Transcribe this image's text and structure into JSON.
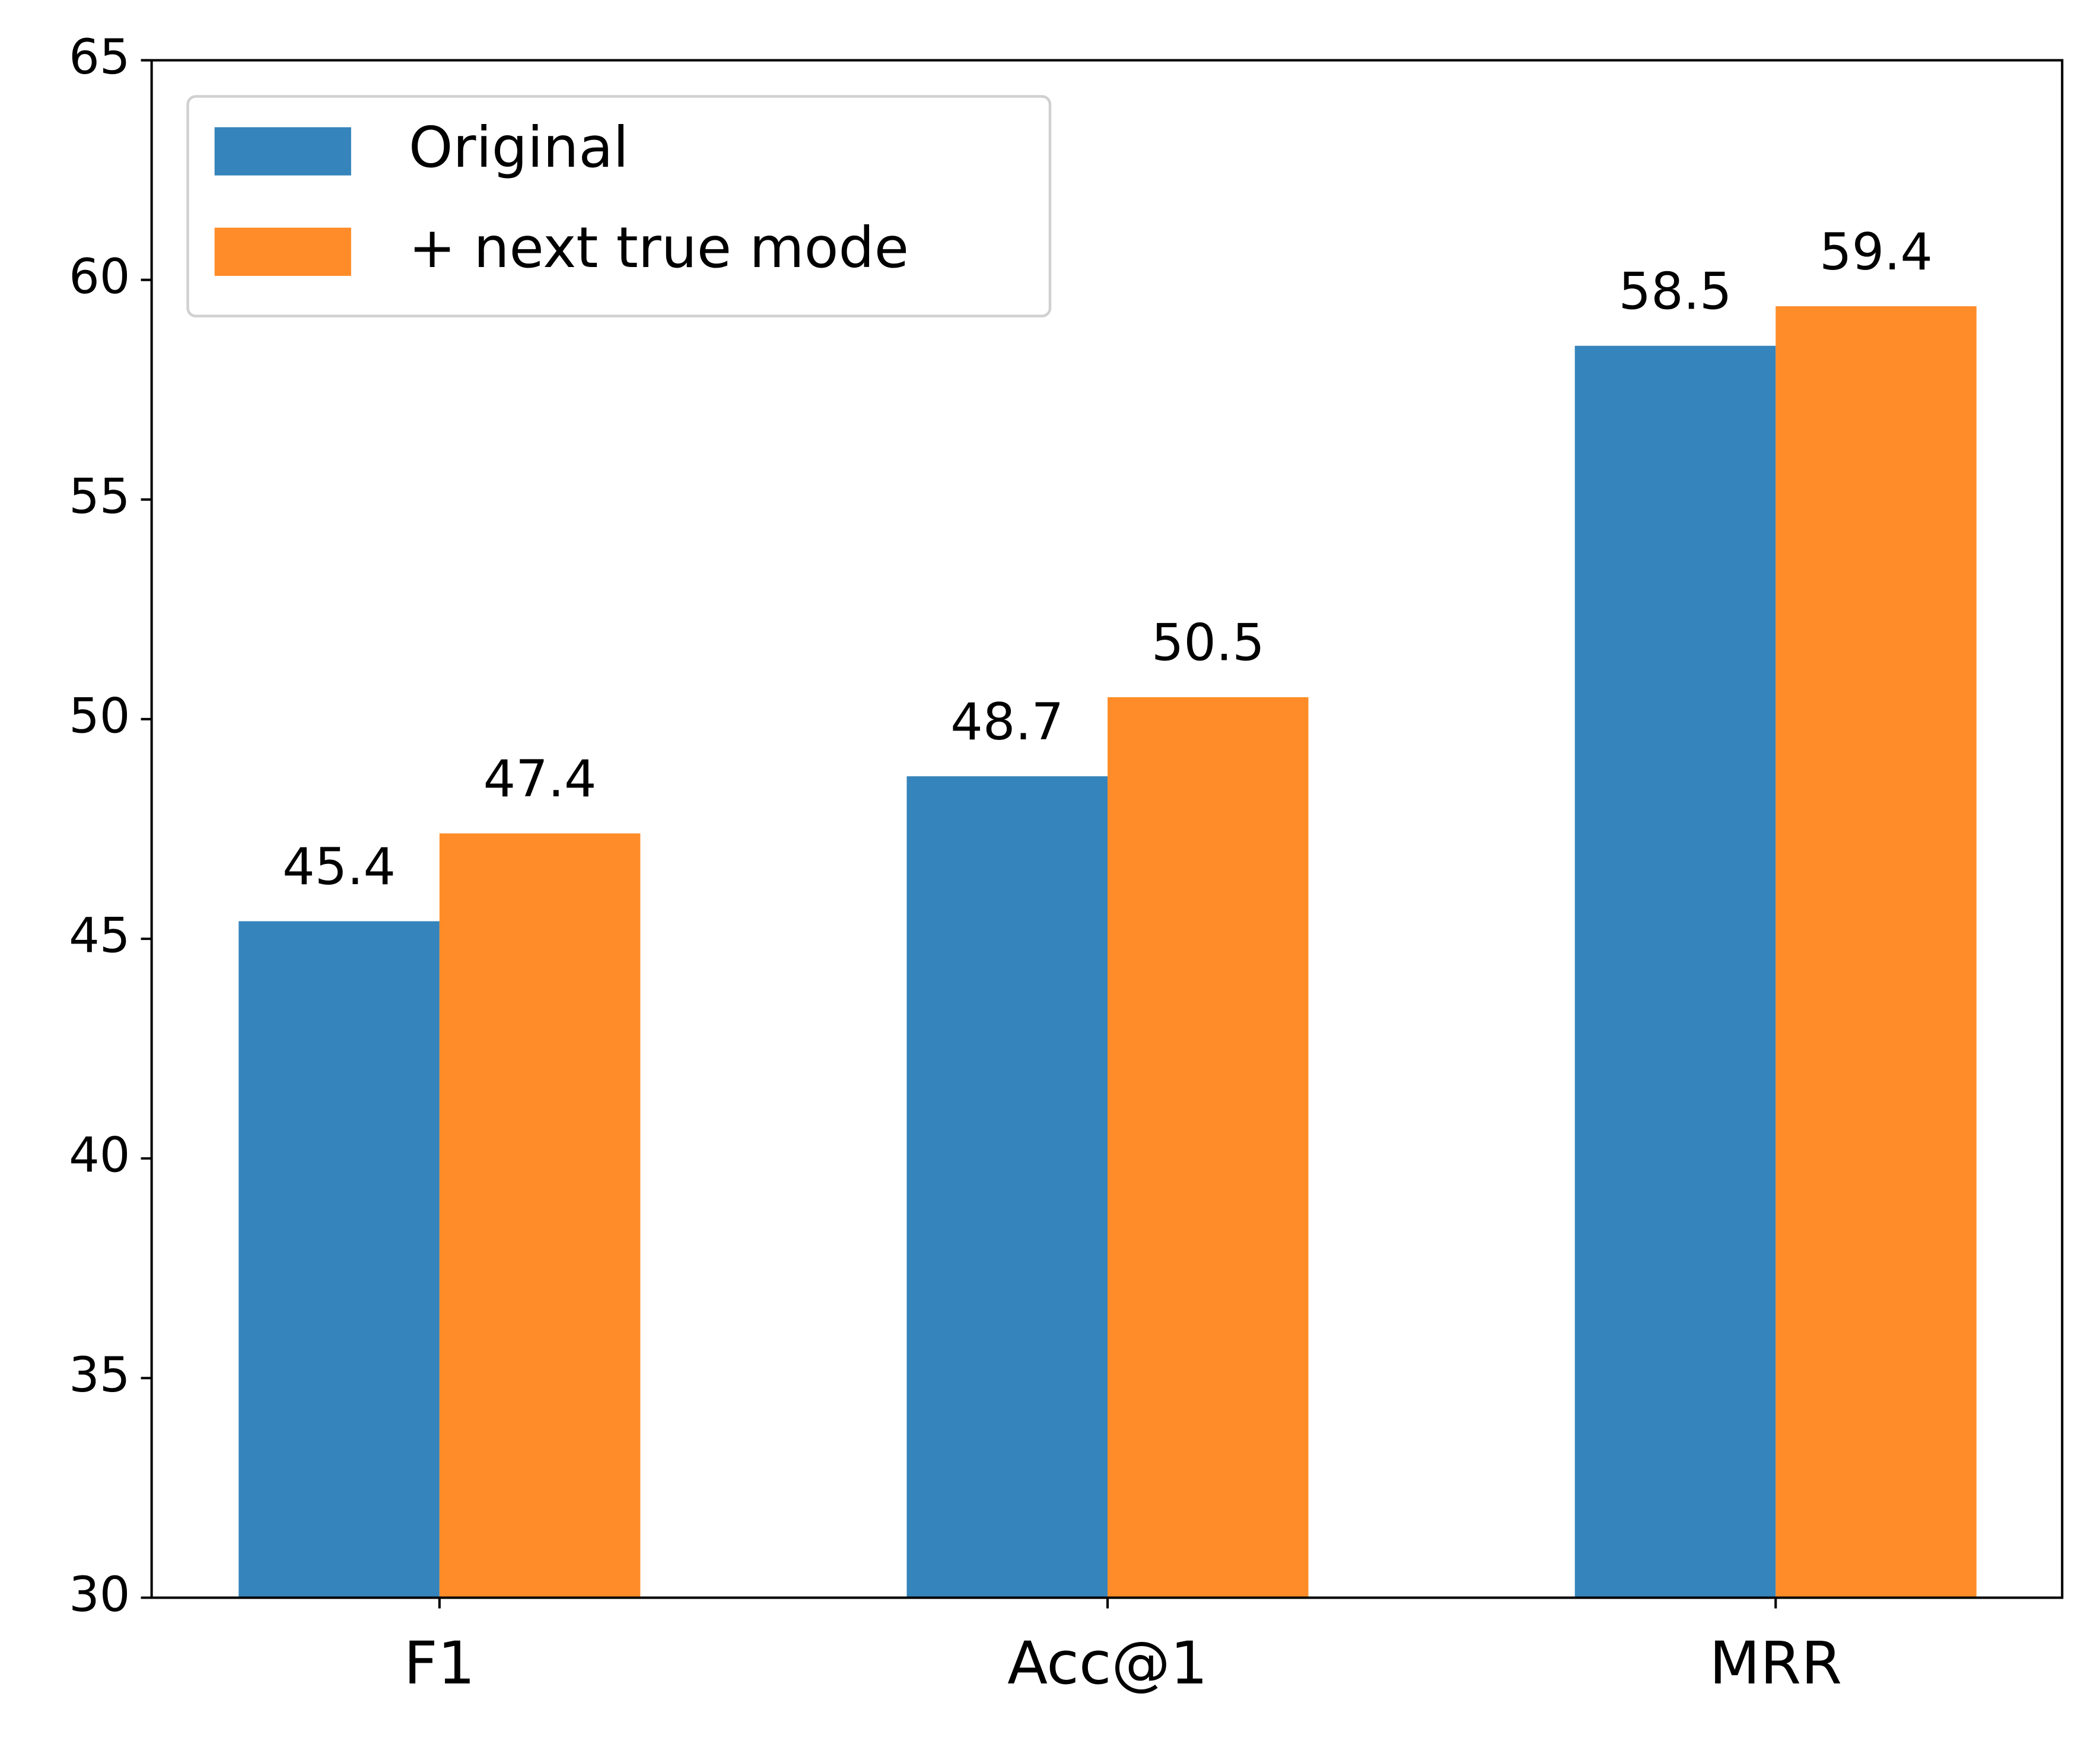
{
  "chart_data": {
    "type": "bar",
    "categories": [
      "F1",
      "Acc@1",
      "MRR"
    ],
    "series": [
      {
        "name": "Original",
        "color": "#3584bb",
        "values": [
          45.4,
          48.7,
          58.5
        ]
      },
      {
        "name": "+ next true mode",
        "color": "#ff8c28",
        "values": [
          47.4,
          50.5,
          59.4
        ]
      }
    ],
    "ylim": [
      30,
      65
    ],
    "yticks": [
      30,
      35,
      40,
      45,
      50,
      55,
      60,
      65
    ],
    "grid": false,
    "legend": "upper left"
  }
}
